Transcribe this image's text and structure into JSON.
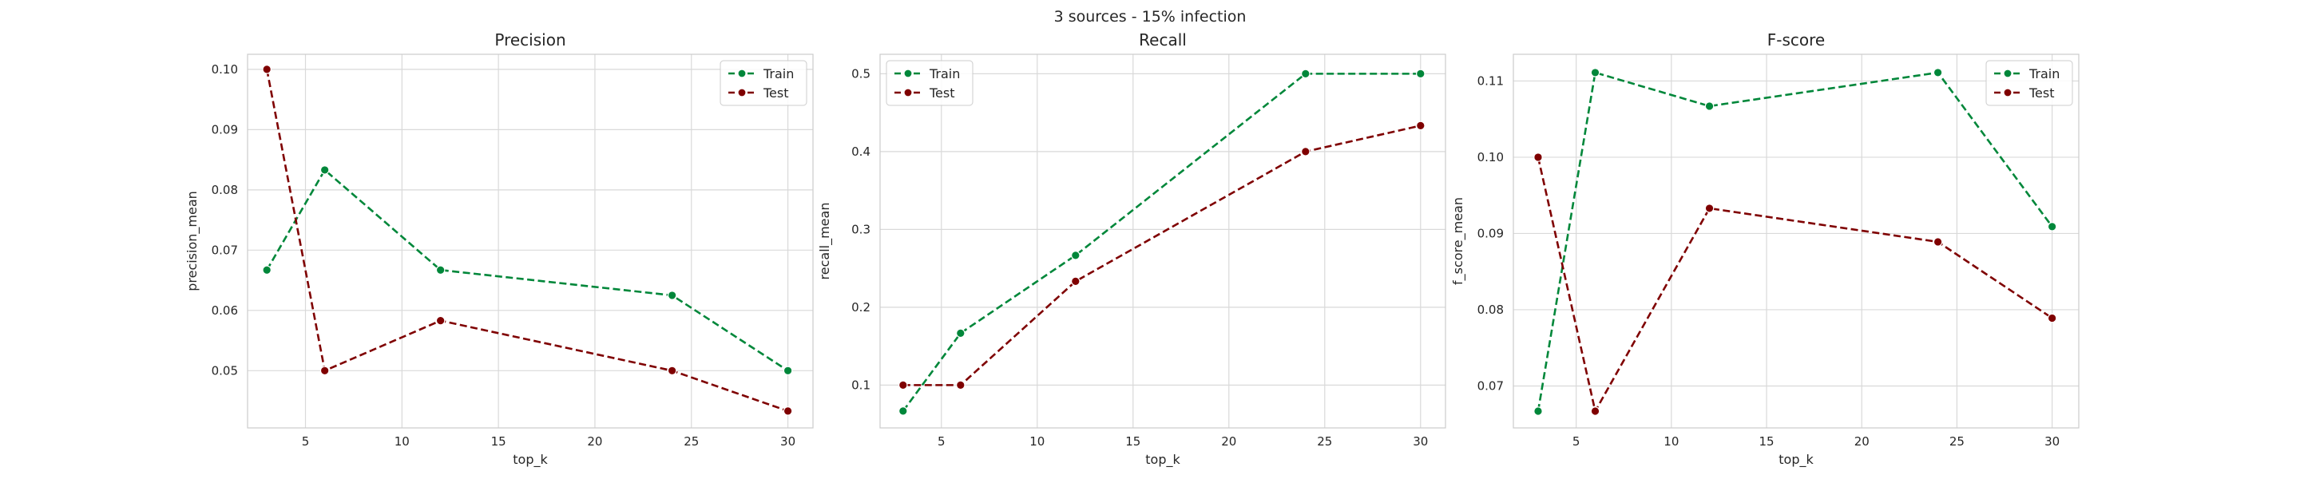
{
  "figure": {
    "suptitle": "3 sources - 15% infection"
  },
  "colors": {
    "train": "#00873a",
    "test": "#7f0000",
    "grid": "#d9d9d9",
    "text": "#262626"
  },
  "chart_data": [
    {
      "type": "line",
      "title": "Precision",
      "xlabel": "top_k",
      "ylabel": "precision_mean",
      "grid": true,
      "legend": "top-right",
      "x": [
        3,
        6,
        12,
        24,
        30
      ],
      "xlim": [
        2,
        31.3
      ],
      "ylim": [
        0.0405,
        0.1025
      ],
      "xticks": [
        5,
        10,
        15,
        20,
        25,
        30
      ],
      "yticks": [
        0.05,
        0.06,
        0.07,
        0.08,
        0.09,
        0.1
      ],
      "ytick_labels": [
        "0.05",
        "0.06",
        "0.07",
        "0.08",
        "0.09",
        "0.10"
      ],
      "series": [
        {
          "name": "Train",
          "color": "#00873a",
          "values": [
            0.0667,
            0.0833,
            0.0667,
            0.0625,
            0.05
          ]
        },
        {
          "name": "Test",
          "color": "#7f0000",
          "values": [
            0.1,
            0.05,
            0.0583,
            0.05,
            0.0433
          ]
        }
      ]
    },
    {
      "type": "line",
      "title": "Recall",
      "xlabel": "top_k",
      "ylabel": "recall_mean",
      "grid": true,
      "legend": "top-left",
      "x": [
        3,
        6,
        12,
        24,
        30
      ],
      "xlim": [
        1.8,
        31.3
      ],
      "ylim": [
        0.045,
        0.525
      ],
      "xticks": [
        5,
        10,
        15,
        20,
        25,
        30
      ],
      "yticks": [
        0.1,
        0.2,
        0.3,
        0.4,
        0.5
      ],
      "ytick_labels": [
        "0.1",
        "0.2",
        "0.3",
        "0.4",
        "0.5"
      ],
      "series": [
        {
          "name": "Train",
          "color": "#00873a",
          "values": [
            0.0667,
            0.1667,
            0.2667,
            0.5,
            0.5
          ]
        },
        {
          "name": "Test",
          "color": "#7f0000",
          "values": [
            0.1,
            0.1,
            0.2333,
            0.4,
            0.4333
          ]
        }
      ]
    },
    {
      "type": "line",
      "title": "F-score",
      "xlabel": "top_k",
      "ylabel": "f_score_mean",
      "grid": true,
      "legend": "top-right",
      "x": [
        3,
        6,
        12,
        24,
        30
      ],
      "xlim": [
        1.7,
        31.4
      ],
      "ylim": [
        0.0645,
        0.1135
      ],
      "xticks": [
        5,
        10,
        15,
        20,
        25,
        30
      ],
      "yticks": [
        0.07,
        0.08,
        0.09,
        0.1,
        0.11
      ],
      "ytick_labels": [
        "0.07",
        "0.08",
        "0.09",
        "0.10",
        "0.11"
      ],
      "series": [
        {
          "name": "Train",
          "color": "#00873a",
          "values": [
            0.0667,
            0.1111,
            0.1067,
            0.1111,
            0.0909
          ]
        },
        {
          "name": "Test",
          "color": "#7f0000",
          "values": [
            0.1,
            0.0667,
            0.0933,
            0.0889,
            0.0789
          ]
        }
      ]
    }
  ]
}
